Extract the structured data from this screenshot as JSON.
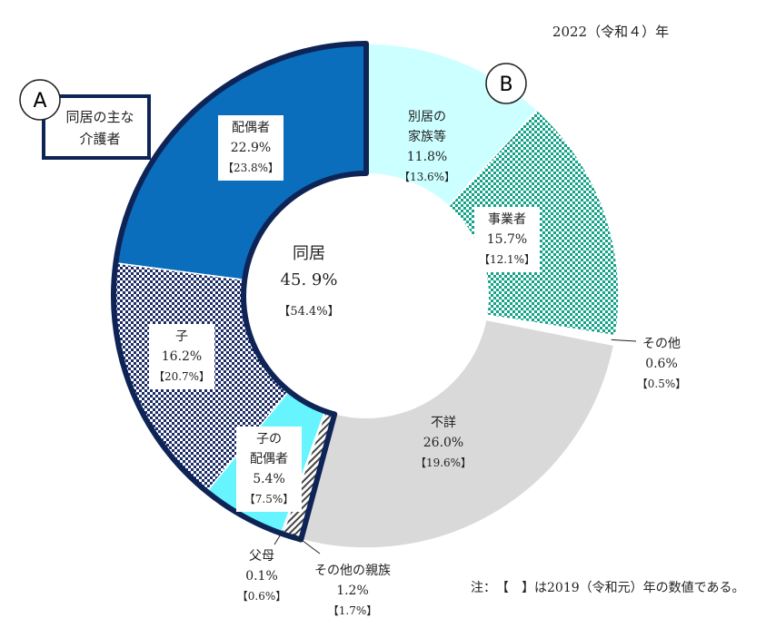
{
  "year_label": "2022（令和４）年",
  "note": "注：　【　】は2019（令和元）年の数値である。",
  "badge_a": "A",
  "badge_b": "B",
  "callout_a_line1": "同居の主な",
  "callout_a_line2": "介護者",
  "center": {
    "line1": "同居",
    "value": "45. 9%",
    "prev": "【54.4%】"
  },
  "colors": {
    "spouse": "#0a6ebd",
    "child": "#1b2b64",
    "child_spouse": "#66f5ff",
    "parents": "#555555",
    "other_relatives": "#666666",
    "unknown": "#d9d9d9",
    "other": "#ffffff",
    "business": "#13a389",
    "separate_family": "#ccffff",
    "outline": "#0e2456"
  },
  "chart_data": {
    "type": "pie",
    "variant": "donut-with-outer-ring",
    "series": [
      {
        "key": "spouse",
        "label_lines": [
          "配偶者"
        ],
        "value": 22.9,
        "value_text": "22.9%",
        "prev_text": "【23.8%】",
        "group": "同居"
      },
      {
        "key": "child",
        "label_lines": [
          "子"
        ],
        "value": 16.2,
        "value_text": "16.2%",
        "prev_text": "【20.7%】",
        "group": "同居"
      },
      {
        "key": "child_spouse",
        "label_lines": [
          "子の",
          "配偶者"
        ],
        "value": 5.4,
        "value_text": "5.4%",
        "prev_text": "【7.5%】",
        "group": "同居"
      },
      {
        "key": "parents",
        "label_lines": [
          "父母"
        ],
        "value": 0.1,
        "value_text": "0.1%",
        "prev_text": "【0.6%】",
        "group": "同居"
      },
      {
        "key": "other_relatives",
        "label_lines": [
          "その他の親族"
        ],
        "value": 1.2,
        "value_text": "1.2%",
        "prev_text": "【1.7%】",
        "group": "同居"
      },
      {
        "key": "unknown",
        "label_lines": [
          "不詳"
        ],
        "value": 26.0,
        "value_text": "26.0%",
        "prev_text": "【19.6%】",
        "group": ""
      },
      {
        "key": "other",
        "label_lines": [
          "その他"
        ],
        "value": 0.6,
        "value_text": "0.6%",
        "prev_text": "【0.5%】",
        "group": ""
      },
      {
        "key": "business",
        "label_lines": [
          "事業者"
        ],
        "value": 15.7,
        "value_text": "15.7%",
        "prev_text": "【12.1%】",
        "group": ""
      },
      {
        "key": "separate_family",
        "label_lines": [
          "別居の",
          "家族等"
        ],
        "value": 11.8,
        "value_text": "11.8%",
        "prev_text": "【13.6%】",
        "group": ""
      }
    ]
  }
}
